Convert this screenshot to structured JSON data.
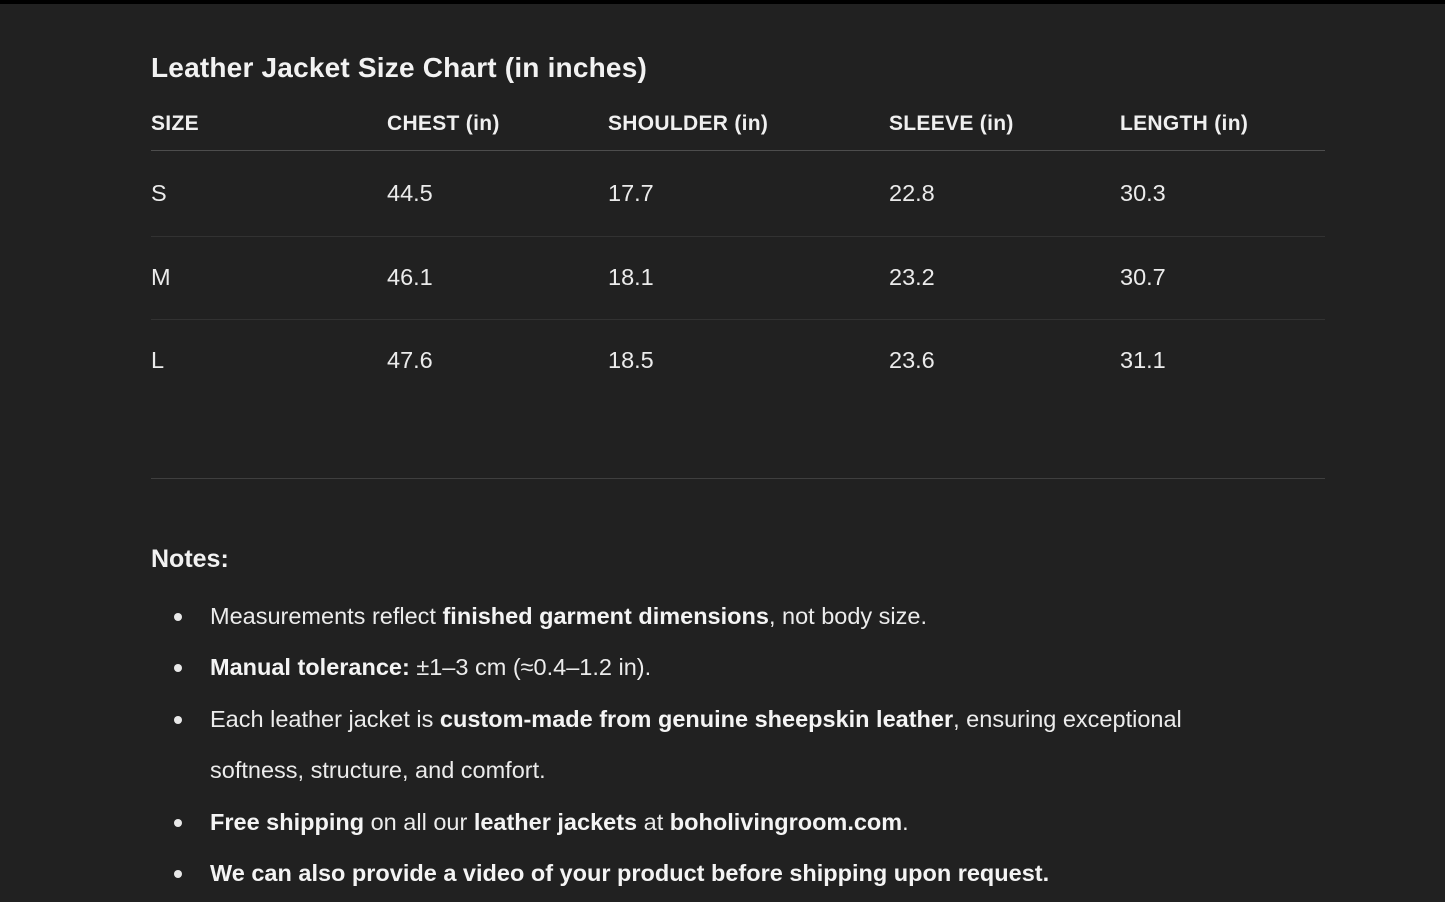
{
  "page": {
    "title": "Leather Jacket Size Chart (in inches)"
  },
  "table": {
    "columns": [
      "SIZE",
      "CHEST (in)",
      "SHOULDER (in)",
      "SLEEVE (in)",
      "LENGTH (in)"
    ],
    "rows": [
      {
        "cells": [
          "S",
          "44.5",
          "17.7",
          "22.8",
          "30.3"
        ]
      },
      {
        "cells": [
          "M",
          "46.1",
          "18.1",
          "23.2",
          "30.7"
        ]
      },
      {
        "cells": [
          "L",
          "47.6",
          "18.5",
          "23.6",
          "31.1"
        ]
      }
    ]
  },
  "notes": {
    "heading": "Notes:",
    "items": [
      {
        "segments": [
          {
            "text": "Measurements reflect ",
            "bold": false
          },
          {
            "text": "finished garment dimensions",
            "bold": true
          },
          {
            "text": ", not body size.",
            "bold": false
          }
        ]
      },
      {
        "segments": [
          {
            "text": "Manual tolerance:",
            "bold": true
          },
          {
            "text": " ±1–3 cm (≈0.4–1.2 in).",
            "bold": false
          }
        ]
      },
      {
        "segments": [
          {
            "text": "Each leather jacket is ",
            "bold": false
          },
          {
            "text": "custom-made from genuine sheepskin leather",
            "bold": true
          },
          {
            "text": ", ensuring exceptional softness, structure, and comfort.",
            "bold": false
          }
        ]
      },
      {
        "segments": [
          {
            "text": "Free shipping",
            "bold": true
          },
          {
            "text": " on all our ",
            "bold": false
          },
          {
            "text": "leather jackets",
            "bold": true
          },
          {
            "text": " at ",
            "bold": false
          },
          {
            "text": "boholivingroom.com",
            "bold": true
          },
          {
            "text": ".",
            "bold": false
          }
        ]
      },
      {
        "segments": [
          {
            "text": "We can also provide a video of your product before shipping upon request.",
            "bold": true
          }
        ]
      }
    ]
  },
  "colors": {
    "background": "#212121",
    "top_bar": "#000000",
    "text": "#ececec",
    "header_rule": "#4d4d4d",
    "row_rule": "#323232",
    "section_rule": "#3f3f3f"
  }
}
